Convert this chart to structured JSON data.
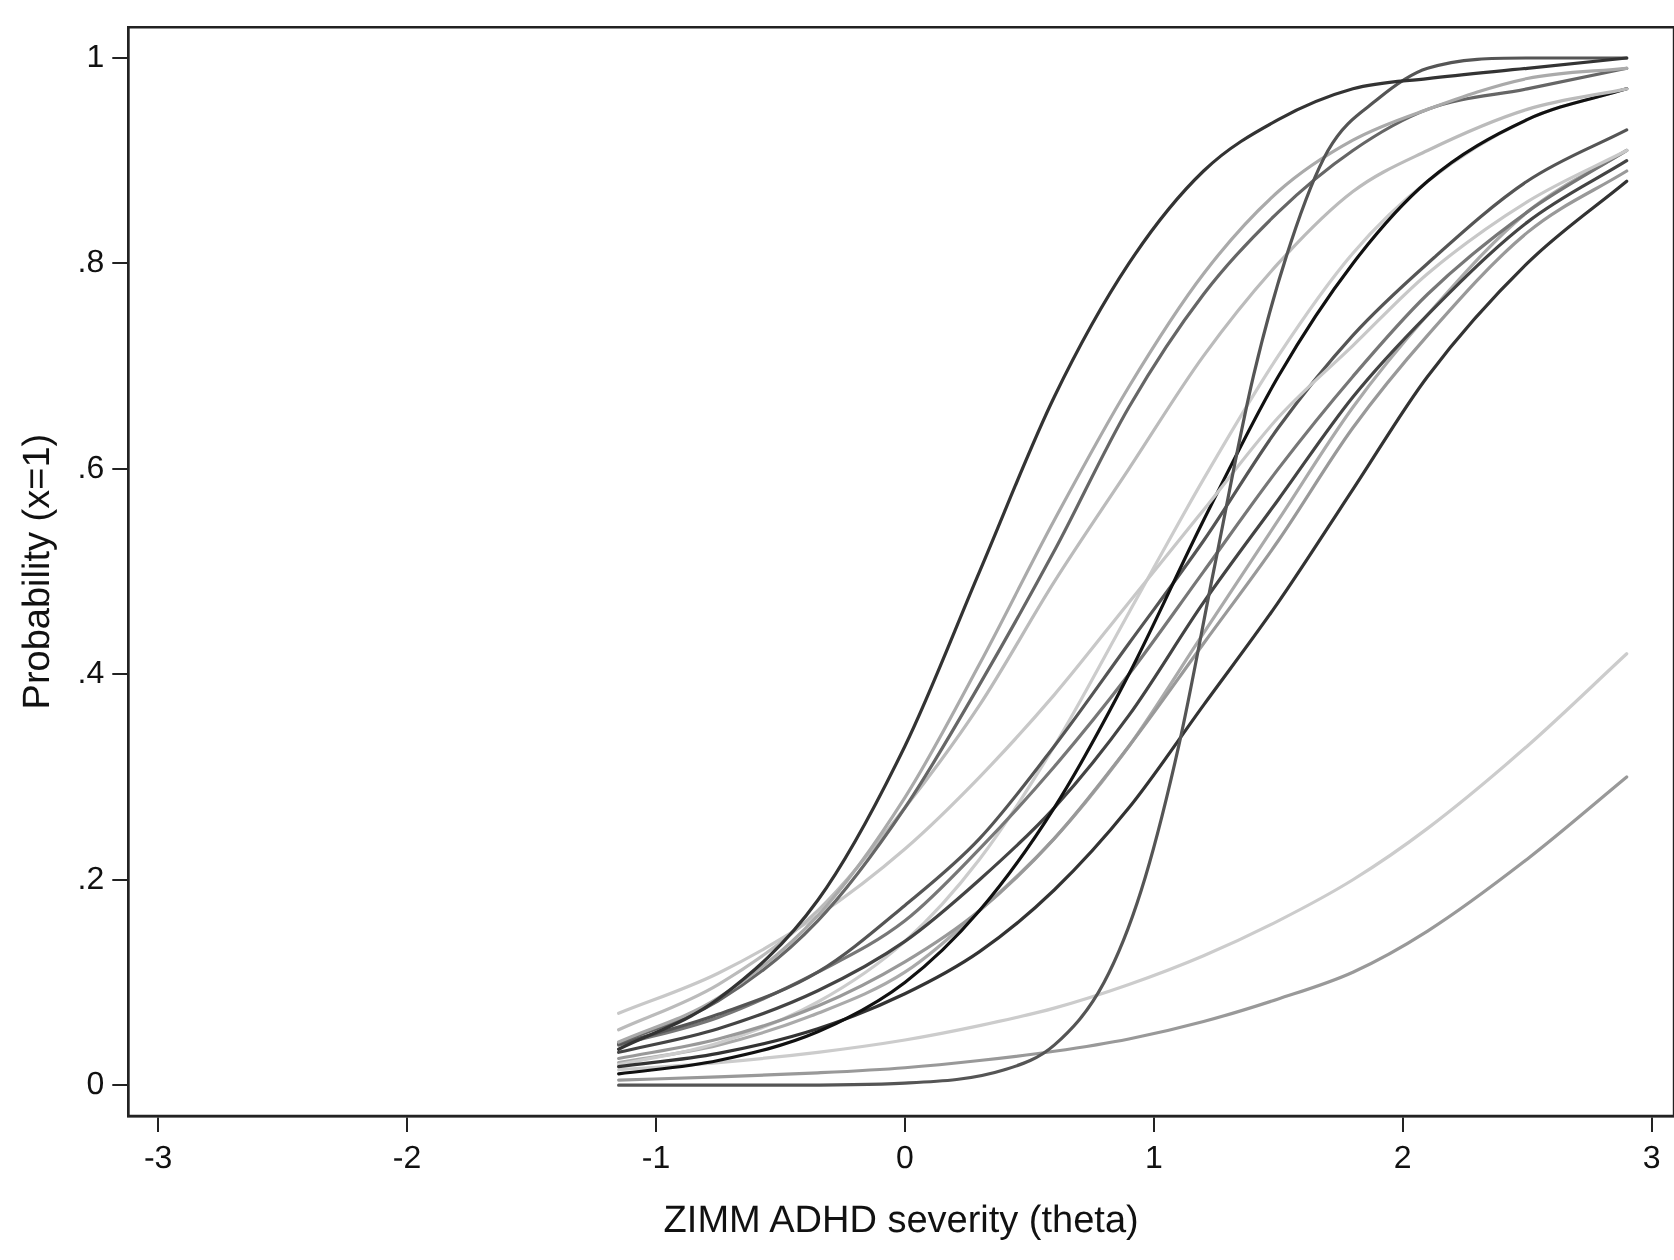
{
  "chart_data": {
    "type": "line",
    "xlabel": "ZIMM ADHD severity (theta)",
    "ylabel": "Probability (x=1)",
    "x": [
      -1.15,
      -0.75,
      -0.35,
      0,
      0.3,
      0.6,
      0.9,
      1.2,
      1.5,
      1.8,
      2.1,
      2.5,
      2.9
    ],
    "xlim": [
      -3.12,
      3.09
    ],
    "xticks": [
      -3,
      -2,
      -1,
      0,
      1,
      2,
      3
    ],
    "ylim": [
      -0.03,
      1.03
    ],
    "yticks": [
      0,
      {
        "value": 0.2,
        "label": ".2"
      },
      {
        "value": 0.4,
        "label": ".4"
      },
      {
        "value": 0.6,
        "label": ".6"
      },
      {
        "value": 0.8,
        "label": ".8"
      },
      1
    ],
    "grid": false,
    "legend": false,
    "marker": "none",
    "line_style": "solid",
    "series": [
      {
        "color": "#333333",
        "values": [
          0.035,
          0.084,
          0.18,
          0.33,
          0.5,
          0.67,
          0.8,
          0.89,
          0.94,
          0.97,
          0.98,
          0.99,
          1.0
        ]
      },
      {
        "color": "#555555",
        "x": [
          -1.15,
          -0.5,
          0,
          0.4,
          0.6,
          0.8,
          0.95,
          1.1,
          1.24,
          1.4,
          1.55,
          1.7,
          1.9,
          2.1,
          2.5,
          2.9
        ],
        "values": [
          0.0,
          0.0,
          0.002,
          0.015,
          0.039,
          0.1,
          0.19,
          0.33,
          0.5,
          0.69,
          0.82,
          0.91,
          0.96,
          0.99,
          1.0,
          1.0
        ]
      },
      {
        "color": "#aaaaaa",
        "values": [
          0.042,
          0.085,
          0.165,
          0.28,
          0.41,
          0.55,
          0.68,
          0.79,
          0.87,
          0.92,
          0.95,
          0.98,
          0.99
        ]
      },
      {
        "color": "#666666",
        "values": [
          0.041,
          0.082,
          0.16,
          0.27,
          0.39,
          0.52,
          0.66,
          0.77,
          0.85,
          0.91,
          0.95,
          0.97,
          0.99
        ]
      },
      {
        "color": "#bbbbbb",
        "values": [
          0.054,
          0.098,
          0.17,
          0.27,
          0.37,
          0.49,
          0.6,
          0.71,
          0.8,
          0.87,
          0.91,
          0.95,
          0.97
        ]
      },
      {
        "color": "#c8c8c8",
        "values": [
          0.07,
          0.109,
          0.165,
          0.23,
          0.3,
          0.38,
          0.47,
          0.56,
          0.65,
          0.72,
          0.79,
          0.86,
          0.91
        ]
      },
      {
        "color": "#111111",
        "values": [
          0.011,
          0.024,
          0.052,
          0.1,
          0.17,
          0.27,
          0.4,
          0.55,
          0.69,
          0.8,
          0.88,
          0.94,
          0.97
        ]
      },
      {
        "color": "#555555",
        "values": [
          0.04,
          0.069,
          0.11,
          0.175,
          0.24,
          0.33,
          0.43,
          0.53,
          0.64,
          0.73,
          0.8,
          0.88,
          0.93
        ]
      },
      {
        "color": "#777777",
        "values": [
          0.039,
          0.066,
          0.11,
          0.16,
          0.23,
          0.31,
          0.4,
          0.5,
          0.6,
          0.69,
          0.77,
          0.85,
          0.91
        ]
      },
      {
        "color": "#444444",
        "values": [
          0.032,
          0.055,
          0.092,
          0.14,
          0.2,
          0.27,
          0.36,
          0.47,
          0.57,
          0.67,
          0.75,
          0.84,
          0.9
        ]
      },
      {
        "color": "#999999",
        "values": [
          0.026,
          0.045,
          0.077,
          0.12,
          0.17,
          0.24,
          0.33,
          0.43,
          0.53,
          0.64,
          0.73,
          0.83,
          0.89
        ]
      },
      {
        "color": "#333333",
        "values": [
          0.018,
          0.031,
          0.055,
          0.089,
          0.13,
          0.19,
          0.27,
          0.37,
          0.47,
          0.58,
          0.69,
          0.8,
          0.88
        ]
      },
      {
        "color": "#cccccc",
        "values": [
          0.02,
          0.041,
          0.081,
          0.14,
          0.22,
          0.33,
          0.46,
          0.59,
          0.71,
          0.81,
          0.88,
          0.94,
          0.97
        ]
      },
      {
        "color": "#aaaaaa",
        "values": [
          0.022,
          0.039,
          0.07,
          0.11,
          0.17,
          0.24,
          0.33,
          0.44,
          0.55,
          0.66,
          0.75,
          0.85,
          0.91
        ]
      },
      {
        "color": "#cccccc",
        "values": [
          0.015,
          0.022,
          0.032,
          0.044,
          0.058,
          0.075,
          0.098,
          0.126,
          0.16,
          0.2,
          0.25,
          0.33,
          0.42
        ]
      },
      {
        "color": "#999999",
        "values": [
          0.005,
          0.008,
          0.012,
          0.017,
          0.024,
          0.033,
          0.045,
          0.062,
          0.084,
          0.11,
          0.15,
          0.22,
          0.3
        ]
      }
    ]
  }
}
